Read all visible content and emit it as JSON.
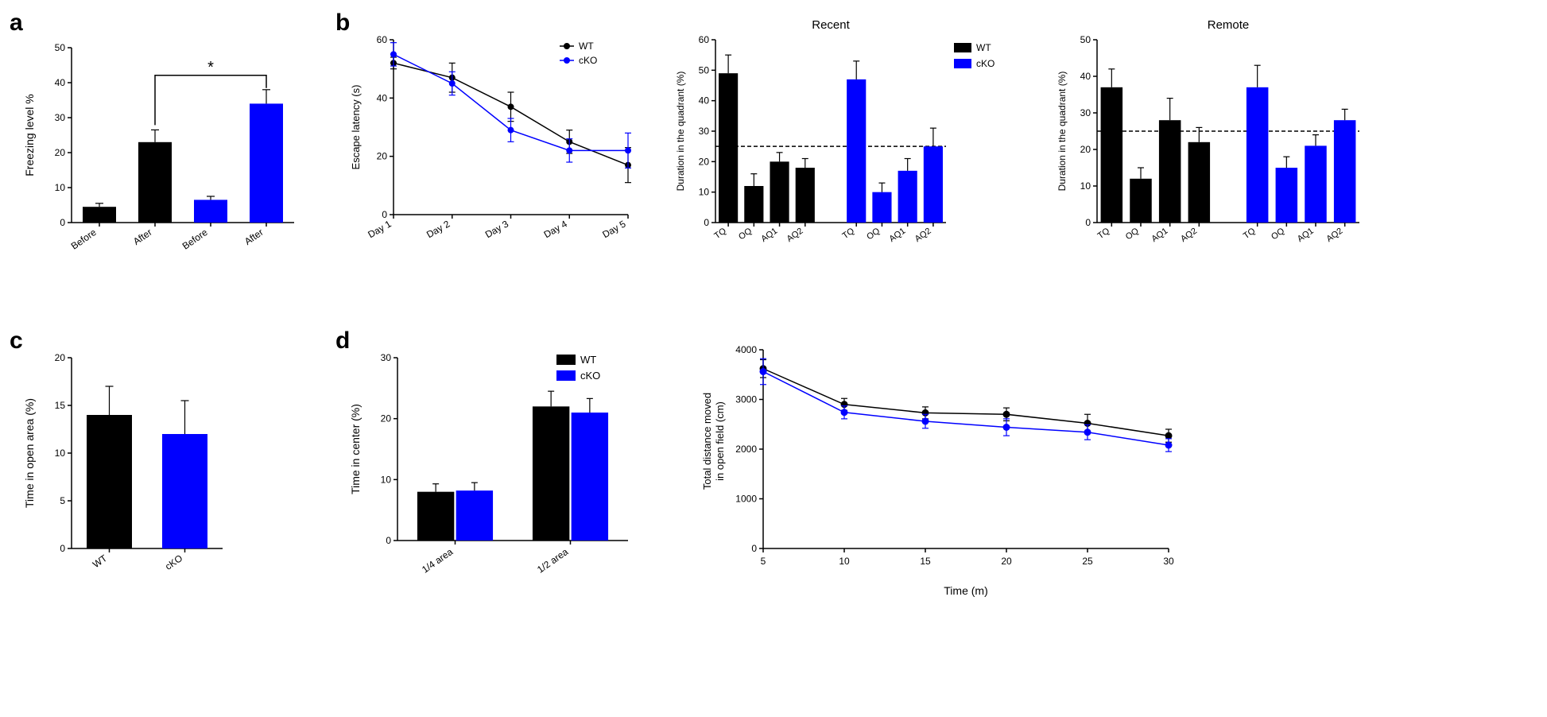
{
  "colors": {
    "wt": "#000000",
    "cko": "#0000ff",
    "background": "#ffffff",
    "axis": "#000000"
  },
  "panel_a": {
    "label": "a",
    "type": "bar",
    "ylabel": "Freezing level %",
    "ylim": [
      0,
      50
    ],
    "ytick_step": 10,
    "categories": [
      "Before",
      "After",
      "Before",
      "After"
    ],
    "colors": [
      "#000000",
      "#000000",
      "#0000ff",
      "#0000ff"
    ],
    "values": [
      4.5,
      23,
      6.5,
      34
    ],
    "errors": [
      1,
      3.5,
      1,
      4
    ],
    "bar_width": 0.6,
    "sig": {
      "from": 1,
      "to": 3,
      "label": "*"
    },
    "label_fontsize": 12,
    "title_fontsize": 14,
    "label_rotation": -35
  },
  "panel_b": {
    "label": "b",
    "line": {
      "type": "line",
      "ylabel": "Escape latency (s)",
      "ylim": [
        0,
        60
      ],
      "ytick_step": 20,
      "categories": [
        "Day 1",
        "Day 2",
        "Day 3",
        "Day 4",
        "Day 5"
      ],
      "series": [
        {
          "name": "WT",
          "color": "#000000",
          "marker": "circle",
          "values": [
            52,
            47,
            37,
            25,
            17
          ],
          "errors": [
            2,
            5,
            5,
            4,
            6
          ]
        },
        {
          "name": "cKO",
          "color": "#0000ff",
          "marker": "circle",
          "values": [
            55,
            45,
            29,
            22,
            22
          ],
          "errors": [
            4,
            4,
            4,
            4,
            6
          ]
        }
      ],
      "label_rotation": -30
    },
    "recent": {
      "title": "Recent",
      "type": "bar",
      "ylabel": "Duration in the quadrant (%)",
      "ylim": [
        0,
        60
      ],
      "ytick_step": 10,
      "ref_line": 25,
      "legend": [
        {
          "name": "WT",
          "color": "#000000"
        },
        {
          "name": "cKO",
          "color": "#0000ff"
        }
      ],
      "groups": [
        {
          "color": "#000000",
          "categories": [
            "TQ",
            "OQ",
            "AQ1",
            "AQ2"
          ],
          "values": [
            49,
            12,
            20,
            18
          ],
          "errors": [
            6,
            4,
            3,
            3
          ]
        },
        {
          "color": "#0000ff",
          "categories": [
            "TQ",
            "OQ",
            "AQ1",
            "AQ2"
          ],
          "values": [
            47,
            10,
            17,
            25
          ],
          "errors": [
            6,
            3,
            4,
            6
          ]
        }
      ],
      "label_rotation": -35
    },
    "remote": {
      "title": "Remote",
      "type": "bar",
      "ylabel": "Duration in the quadrant (%)",
      "ylim": [
        0,
        50
      ],
      "ytick_step": 10,
      "ref_line": 25,
      "groups": [
        {
          "color": "#000000",
          "categories": [
            "TQ",
            "OQ",
            "AQ1",
            "AQ2"
          ],
          "values": [
            37,
            12,
            28,
            22
          ],
          "errors": [
            5,
            3,
            6,
            4
          ]
        },
        {
          "color": "#0000ff",
          "categories": [
            "TQ",
            "OQ",
            "AQ1",
            "AQ2"
          ],
          "values": [
            37,
            15,
            21,
            28
          ],
          "errors": [
            6,
            3,
            3,
            3
          ]
        }
      ],
      "label_rotation": -35
    }
  },
  "panel_c": {
    "label": "c",
    "type": "bar",
    "ylabel": "Time in open area (%)",
    "ylim": [
      0,
      20
    ],
    "ytick_step": 5,
    "categories": [
      "WT",
      "cKO"
    ],
    "colors": [
      "#000000",
      "#0000ff"
    ],
    "values": [
      14,
      12
    ],
    "errors": [
      3,
      3.5
    ],
    "bar_width": 0.6,
    "label_rotation": -35
  },
  "panel_d": {
    "label": "d",
    "bar": {
      "type": "grouped-bar",
      "ylabel": "Time in center (%)",
      "ylim": [
        0,
        30
      ],
      "ytick_step": 10,
      "categories": [
        "1/4 area",
        "1/2 area"
      ],
      "legend": [
        {
          "name": "WT",
          "color": "#000000"
        },
        {
          "name": "cKO",
          "color": "#0000ff"
        }
      ],
      "series": [
        {
          "name": "WT",
          "color": "#000000",
          "values": [
            8,
            22
          ],
          "errors": [
            1.3,
            2.5
          ]
        },
        {
          "name": "cKO",
          "color": "#0000ff",
          "values": [
            8.2,
            21
          ],
          "errors": [
            1.3,
            2.3
          ]
        }
      ],
      "label_rotation": -35
    },
    "line": {
      "type": "line",
      "ylabel_line1": "Total distance moved",
      "ylabel_line2": "in open field (cm)",
      "xlabel": "Time  (m)",
      "ylim": [
        0,
        4000
      ],
      "ytick_step": 1000,
      "xvalues": [
        5,
        10,
        15,
        20,
        25,
        30
      ],
      "series": [
        {
          "name": "WT",
          "color": "#000000",
          "values": [
            3620,
            2900,
            2730,
            2700,
            2520,
            2270
          ],
          "errors": [
            180,
            120,
            120,
            130,
            180,
            130
          ]
        },
        {
          "name": "cKO",
          "color": "#0000ff",
          "values": [
            3560,
            2740,
            2560,
            2440,
            2340,
            2080
          ],
          "errors": [
            260,
            130,
            140,
            170,
            150,
            130
          ]
        }
      ]
    }
  }
}
